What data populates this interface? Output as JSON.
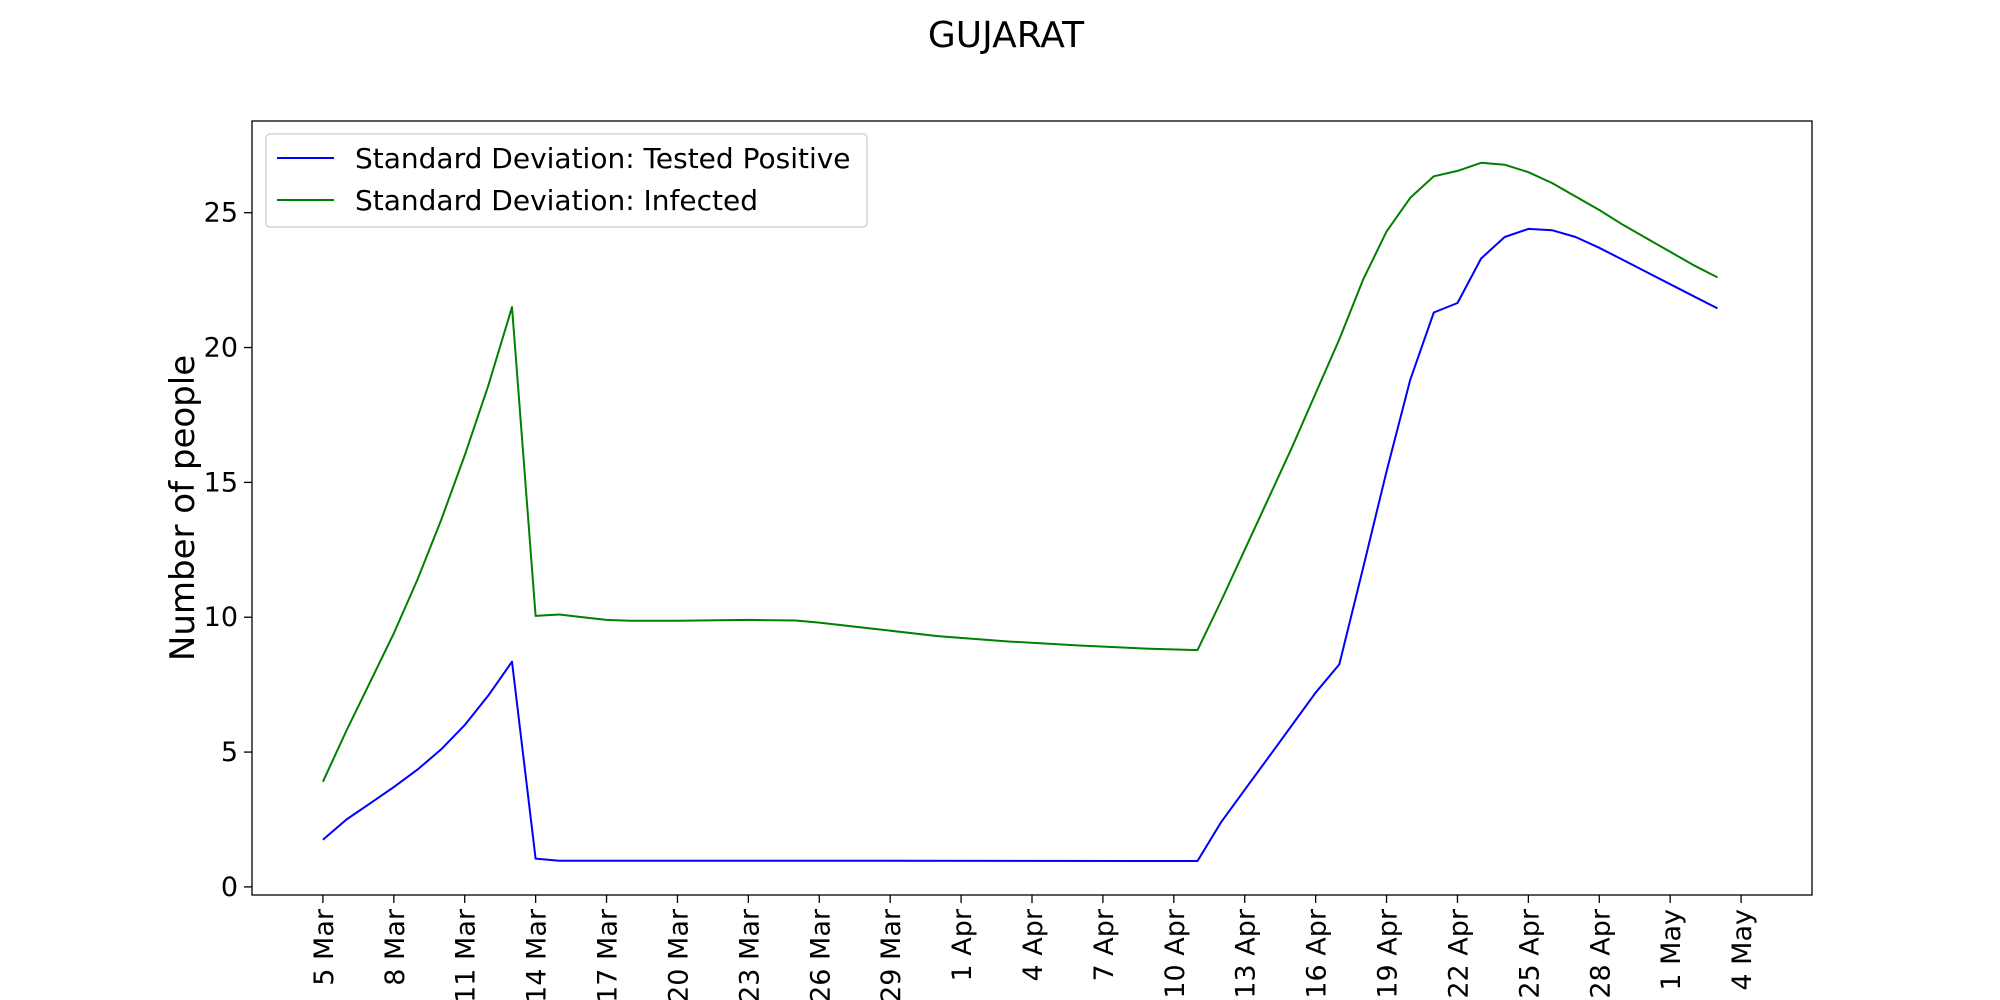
{
  "chart_data": {
    "type": "line",
    "title": "GUJARAT",
    "xlabel": "",
    "ylabel": "Number of people",
    "ylim": [
      -0.3,
      28.4
    ],
    "yticks": [
      0,
      5,
      10,
      15,
      20,
      25
    ],
    "xlim": [
      "2020-03-02",
      "2020-05-07"
    ],
    "xtick_dates": [
      "2020-03-05",
      "2020-03-08",
      "2020-03-11",
      "2020-03-14",
      "2020-03-17",
      "2020-03-20",
      "2020-03-23",
      "2020-03-26",
      "2020-03-29",
      "2020-04-01",
      "2020-04-04",
      "2020-04-07",
      "2020-04-10",
      "2020-04-13",
      "2020-04-16",
      "2020-04-19",
      "2020-04-22",
      "2020-04-25",
      "2020-04-28",
      "2020-05-01",
      "2020-05-04"
    ],
    "xtick_labels": [
      "5 Mar",
      "8 Mar",
      "11 Mar",
      "14 Mar",
      "17 Mar",
      "20 Mar",
      "23 Mar",
      "26 Mar",
      "29 Mar",
      "1 Apr",
      "4 Apr",
      "7 Apr",
      "10 Apr",
      "13 Apr",
      "16 Apr",
      "19 Apr",
      "22 Apr",
      "25 Apr",
      "28 Apr",
      "1 May",
      "4 May"
    ],
    "grid": false,
    "legend_position": "top-left",
    "series": [
      {
        "name": "Standard Deviation: Tested Positive",
        "color": "#0000ff",
        "x": [
          "2020-03-05",
          "2020-03-06",
          "2020-03-07",
          "2020-03-08",
          "2020-03-09",
          "2020-03-10",
          "2020-03-11",
          "2020-03-12",
          "2020-03-13",
          "2020-03-14",
          "2020-03-15",
          "2020-03-26",
          "2020-04-11",
          "2020-04-12",
          "2020-04-13",
          "2020-04-14",
          "2020-04-15",
          "2020-04-16",
          "2020-04-17",
          "2020-04-18",
          "2020-04-19",
          "2020-04-20",
          "2020-04-21",
          "2020-04-22",
          "2020-04-23",
          "2020-04-24",
          "2020-04-25",
          "2020-04-26",
          "2020-04-27",
          "2020-04-28",
          "2020-04-29",
          "2020-04-30",
          "2020-05-01",
          "2020-05-02",
          "2020-05-03"
        ],
        "y": [
          1.75,
          2.5,
          3.1,
          3.7,
          4.35,
          5.1,
          6.0,
          7.1,
          8.35,
          1.05,
          0.97,
          0.97,
          0.96,
          2.4,
          3.6,
          4.8,
          6.0,
          7.2,
          8.25,
          11.8,
          15.4,
          18.8,
          21.3,
          21.65,
          23.3,
          24.1,
          24.4,
          24.35,
          24.1,
          23.7,
          23.25,
          22.8,
          22.35,
          21.9,
          21.45
        ]
      },
      {
        "name": "Standard Deviation: Infected",
        "color": "#008000",
        "x": [
          "2020-03-05",
          "2020-03-06",
          "2020-03-07",
          "2020-03-08",
          "2020-03-09",
          "2020-03-10",
          "2020-03-11",
          "2020-03-12",
          "2020-03-13",
          "2020-03-14",
          "2020-03-15",
          "2020-03-16",
          "2020-03-17",
          "2020-03-18",
          "2020-03-20",
          "2020-03-23",
          "2020-03-25",
          "2020-03-26",
          "2020-03-28",
          "2020-03-31",
          "2020-04-03",
          "2020-04-06",
          "2020-04-09",
          "2020-04-11",
          "2020-04-12",
          "2020-04-13",
          "2020-04-14",
          "2020-04-15",
          "2020-04-16",
          "2020-04-17",
          "2020-04-18",
          "2020-04-19",
          "2020-04-20",
          "2020-04-21",
          "2020-04-22",
          "2020-04-23",
          "2020-04-24",
          "2020-04-25",
          "2020-04-26",
          "2020-04-27",
          "2020-04-28",
          "2020-04-29",
          "2020-04-30",
          "2020-05-01",
          "2020-05-02",
          "2020-05-03"
        ],
        "y": [
          3.9,
          5.8,
          7.6,
          9.4,
          11.4,
          13.6,
          16.0,
          18.6,
          21.5,
          10.05,
          10.1,
          10.0,
          9.9,
          9.87,
          9.87,
          9.9,
          9.88,
          9.8,
          9.6,
          9.3,
          9.1,
          8.95,
          8.83,
          8.78,
          10.6,
          12.5,
          14.4,
          16.3,
          18.3,
          20.3,
          22.5,
          24.3,
          25.55,
          26.35,
          26.55,
          26.85,
          26.78,
          26.5,
          26.1,
          25.6,
          25.1,
          24.55,
          24.05,
          23.55,
          23.05,
          22.6
        ]
      }
    ]
  }
}
